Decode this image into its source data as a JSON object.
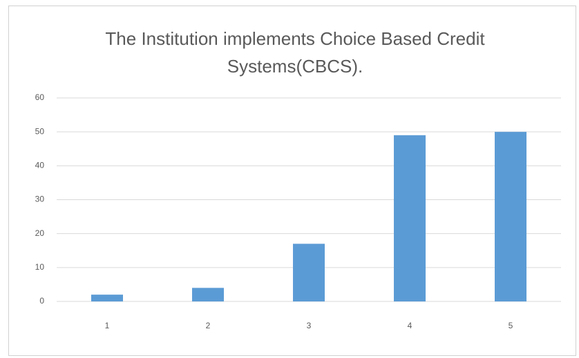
{
  "chart_data": {
    "type": "bar",
    "title": "The Institution implements Choice Based Credit Systems(CBCS).",
    "categories": [
      "1",
      "2",
      "3",
      "4",
      "5"
    ],
    "values": [
      2,
      4,
      17,
      49,
      50
    ],
    "color": "#5b9bd5",
    "ylim": [
      0,
      60
    ],
    "yticks": [
      0,
      10,
      20,
      30,
      40,
      50,
      60
    ],
    "grid": true
  }
}
